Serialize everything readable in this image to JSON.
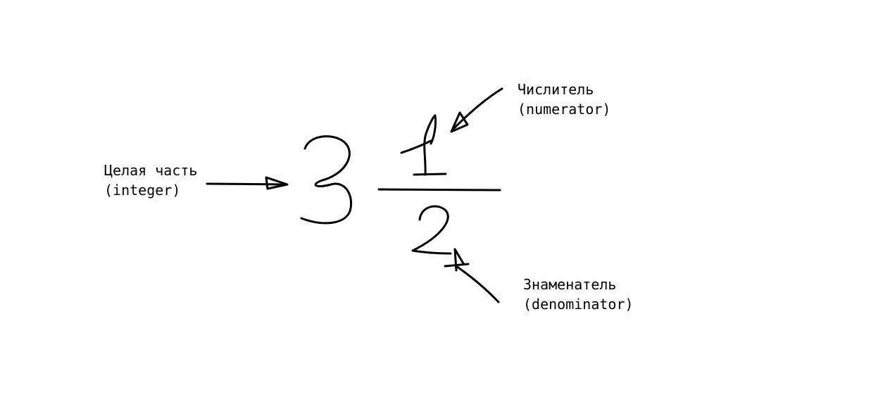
{
  "labels": {
    "integer": {
      "line1": "Целая часть",
      "line2": "(integer)"
    },
    "numerator": {
      "line1": "Числитель",
      "line2": "(numerator)"
    },
    "denominator": {
      "line1": "Знаменатель",
      "line2": "(denominator)"
    }
  },
  "fraction": {
    "integer": "3",
    "numerator": "1",
    "denominator": "2"
  },
  "colors": {
    "ink": "#000000",
    "background": "#ffffff"
  }
}
